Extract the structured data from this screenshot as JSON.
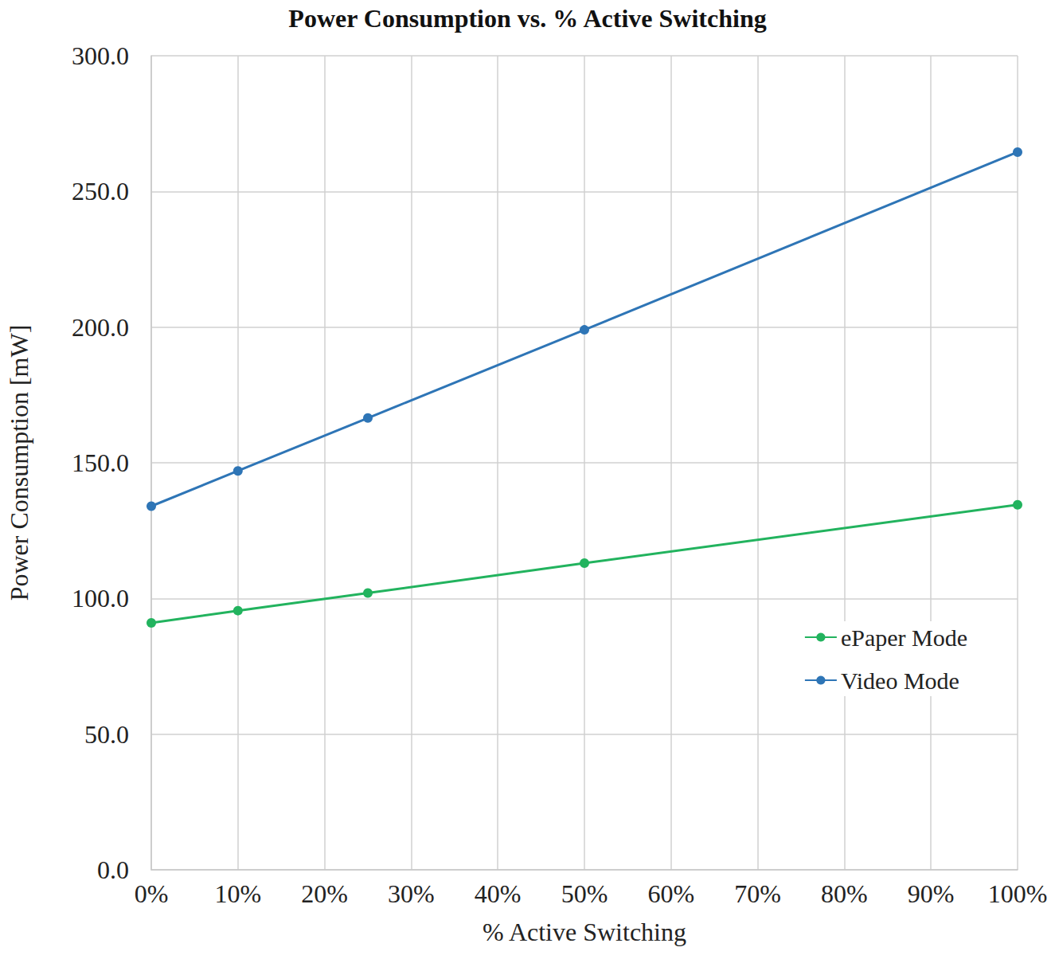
{
  "chart_data": {
    "type": "line",
    "title": "Power Consumption vs. % Active Switching",
    "x_label": "% Active Switching",
    "y_label": "Power Consumption [mW]",
    "x": [
      0,
      10,
      25,
      50,
      100
    ],
    "series": [
      {
        "name": "ePaper Mode",
        "color": "#22b35e",
        "values": [
          91,
          95.5,
          102,
          113,
          134.5
        ]
      },
      {
        "name": "Video Mode",
        "color": "#2e75b6",
        "values": [
          134,
          147,
          166.5,
          199,
          264.5
        ]
      }
    ],
    "xlim": [
      0,
      100
    ],
    "xticks": [
      {
        "value": 0,
        "label": "0%"
      },
      {
        "value": 10,
        "label": "10%"
      },
      {
        "value": 20,
        "label": "20%"
      },
      {
        "value": 30,
        "label": "30%"
      },
      {
        "value": 40,
        "label": "40%"
      },
      {
        "value": 50,
        "label": "50%"
      },
      {
        "value": 60,
        "label": "60%"
      },
      {
        "value": 70,
        "label": "70%"
      },
      {
        "value": 80,
        "label": "80%"
      },
      {
        "value": 90,
        "label": "90%"
      },
      {
        "value": 100,
        "label": "100%"
      }
    ],
    "ylim": [
      0,
      300
    ],
    "yticks": [
      {
        "value": 0,
        "label": "0.0"
      },
      {
        "value": 50,
        "label": "50.0"
      },
      {
        "value": 100,
        "label": "100.0"
      },
      {
        "value": 150,
        "label": "150.0"
      },
      {
        "value": 200,
        "label": "200.0"
      },
      {
        "value": 250,
        "label": "250.0"
      },
      {
        "value": 300,
        "label": "300.0"
      }
    ],
    "grid": true,
    "legend": "right",
    "marker": "circle"
  }
}
